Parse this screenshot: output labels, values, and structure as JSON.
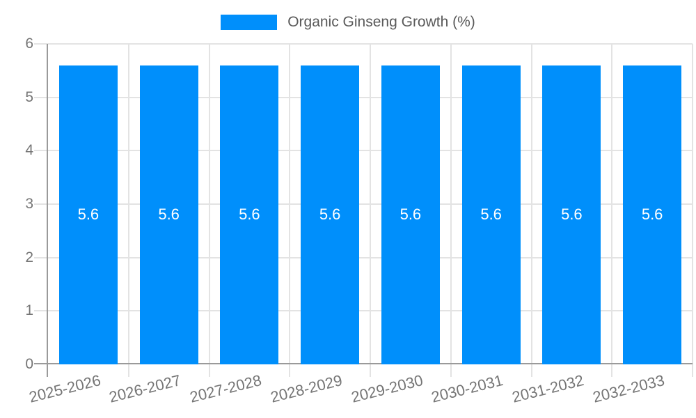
{
  "legend": {
    "label": "Organic Ginseng Growth (%)"
  },
  "chart_data": {
    "type": "bar",
    "title": "Organic Ginseng Growth (%)",
    "categories": [
      "2025-2026",
      "2026-2027",
      "2027-2028",
      "2028-2029",
      "2029-2030",
      "2030-2031",
      "2031-2032",
      "2032-2033"
    ],
    "values": [
      5.6,
      5.6,
      5.6,
      5.6,
      5.6,
      5.6,
      5.6,
      5.6
    ],
    "value_labels": [
      "5.6",
      "5.6",
      "5.6",
      "5.6",
      "5.6",
      "5.6",
      "5.6",
      "5.6"
    ],
    "xlabel": "",
    "ylabel": "",
    "ylim": [
      0,
      6
    ],
    "yticks": [
      0,
      1,
      2,
      3,
      4,
      5,
      6
    ],
    "grid": true,
    "legend_position": "top-center",
    "value_label_position": "center-of-bar",
    "x_label_rotation_deg": -14,
    "colors": {
      "bar": "#008FFB",
      "grid": "#e3e3e3",
      "axis": "#9a9a9a",
      "tick_text": "#757575",
      "legend_text": "#595959",
      "value_label": "#ffffff",
      "background": "#ffffff"
    }
  }
}
